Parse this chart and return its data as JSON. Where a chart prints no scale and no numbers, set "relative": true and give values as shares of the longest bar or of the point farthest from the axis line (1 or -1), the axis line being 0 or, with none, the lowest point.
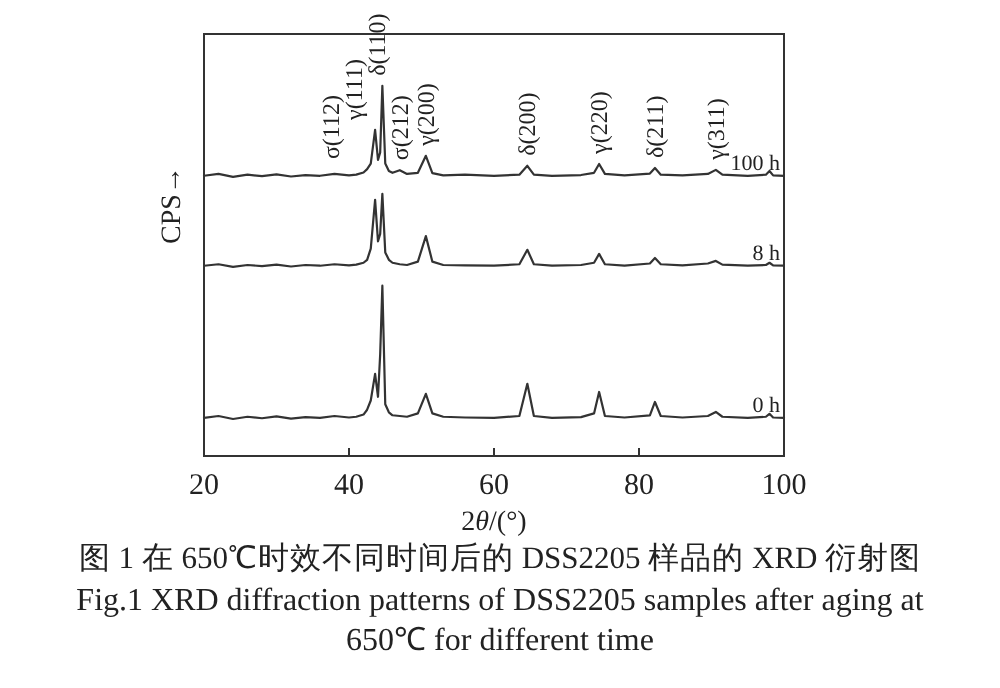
{
  "chart_data": {
    "type": "line",
    "relative": true,
    "title": "图 1  在 650℃时效不同时间后的 DSS2205 样品的 XRD 衍射图",
    "subtitle": "Fig.1  XRD diffraction patterns of DSS2205 samples after aging at 650℃  for different time",
    "xlabel": "2θ/(°)",
    "ylabel": "CPS→",
    "xlim": [
      20,
      100
    ],
    "xticks": [
      20,
      40,
      60,
      80,
      100
    ],
    "grid": false,
    "legend": false,
    "marker": "none",
    "line_style": "solid",
    "x": [
      20,
      22,
      24,
      26,
      28,
      30,
      32,
      34,
      36,
      38,
      40,
      41,
      42,
      42.5,
      43,
      43.6,
      44,
      44.3,
      44.6,
      45,
      45.5,
      46,
      47,
      48,
      49.5,
      50.6,
      51.5,
      53,
      56,
      60,
      63.5,
      64.6,
      65.5,
      68,
      72,
      73.8,
      74.5,
      75.3,
      78,
      81.5,
      82.2,
      83,
      86,
      89.5,
      90.6,
      91.5,
      95,
      97.5,
      98,
      98.5,
      100
    ],
    "series": [
      {
        "name": "100 h",
        "color": "#333333",
        "values": [
          0.757,
          0.762,
          0.754,
          0.76,
          0.756,
          0.761,
          0.755,
          0.759,
          0.757,
          0.762,
          0.758,
          0.76,
          0.766,
          0.775,
          0.79,
          0.881,
          0.8,
          0.82,
          1.0,
          0.79,
          0.77,
          0.765,
          0.772,
          0.762,
          0.765,
          0.811,
          0.764,
          0.758,
          0.76,
          0.757,
          0.76,
          0.784,
          0.76,
          0.757,
          0.759,
          0.765,
          0.789,
          0.762,
          0.758,
          0.763,
          0.778,
          0.76,
          0.758,
          0.762,
          0.773,
          0.76,
          0.757,
          0.76,
          0.77,
          0.758,
          0.757
        ]
      },
      {
        "name": "8 h",
        "color": "#333333",
        "values": [
          0.514,
          0.518,
          0.511,
          0.516,
          0.513,
          0.517,
          0.512,
          0.516,
          0.514,
          0.518,
          0.515,
          0.517,
          0.522,
          0.53,
          0.56,
          0.692,
          0.58,
          0.6,
          0.708,
          0.55,
          0.53,
          0.522,
          0.518,
          0.516,
          0.525,
          0.594,
          0.525,
          0.516,
          0.515,
          0.514,
          0.518,
          0.557,
          0.518,
          0.514,
          0.516,
          0.522,
          0.546,
          0.518,
          0.514,
          0.52,
          0.535,
          0.518,
          0.515,
          0.52,
          0.527,
          0.517,
          0.514,
          0.516,
          0.522,
          0.515,
          0.514
        ]
      },
      {
        "name": "0 h",
        "color": "#333333",
        "values": [
          0.103,
          0.108,
          0.1,
          0.106,
          0.102,
          0.107,
          0.101,
          0.105,
          0.103,
          0.108,
          0.104,
          0.106,
          0.112,
          0.125,
          0.15,
          0.222,
          0.16,
          0.275,
          0.46,
          0.14,
          0.118,
          0.11,
          0.108,
          0.106,
          0.115,
          0.168,
          0.115,
          0.106,
          0.104,
          0.103,
          0.108,
          0.195,
          0.108,
          0.103,
          0.105,
          0.115,
          0.173,
          0.108,
          0.104,
          0.11,
          0.146,
          0.108,
          0.104,
          0.108,
          0.119,
          0.106,
          0.103,
          0.106,
          0.114,
          0.104,
          0.103
        ]
      }
    ],
    "annotations": [
      {
        "text": "σ(112)",
        "x": 42.5,
        "y": 0.775
      },
      {
        "text": "γ(111)",
        "x": 43.6,
        "y": 0.881
      },
      {
        "text": "δ(110)",
        "x": 44.6,
        "y": 1.0
      },
      {
        "text": "σ(212)",
        "x": 47,
        "y": 0.772
      },
      {
        "text": "γ(200)",
        "x": 50.6,
        "y": 0.811
      },
      {
        "text": "δ(200)",
        "x": 64.6,
        "y": 0.784
      },
      {
        "text": "γ(220)",
        "x": 74.5,
        "y": 0.789
      },
      {
        "text": "δ(211)",
        "x": 82.2,
        "y": 0.778
      },
      {
        "text": "γ(311)",
        "x": 90.6,
        "y": 0.773
      }
    ]
  }
}
